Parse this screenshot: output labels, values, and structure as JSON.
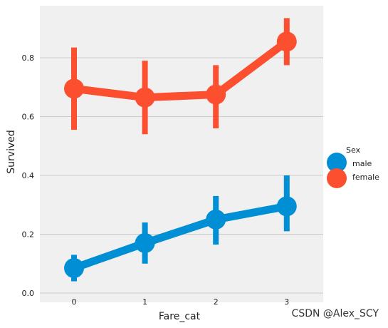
{
  "chart_data": {
    "type": "line",
    "style": "point plot with confidence-interval error bars",
    "categories": [
      "0",
      "1",
      "2",
      "3"
    ],
    "xlabel": "Fare_cat",
    "ylabel": "Survived",
    "yticks": [
      "0.0",
      "0.2",
      "0.4",
      "0.6",
      "0.8"
    ],
    "ylim": [
      0.0,
      0.93
    ],
    "grid": "horizontal",
    "background": "#f0f0f0",
    "legend": {
      "title": "Sex",
      "position": "right",
      "entries": [
        "male",
        "female"
      ]
    },
    "series": [
      {
        "name": "male",
        "color": "#008fd5",
        "values": [
          0.085,
          0.17,
          0.25,
          0.295
        ],
        "ci": [
          [
            0.04,
            0.13
          ],
          [
            0.1,
            0.24
          ],
          [
            0.165,
            0.33
          ],
          [
            0.21,
            0.4
          ]
        ]
      },
      {
        "name": "female",
        "color": "#fc4f30",
        "values": [
          0.695,
          0.665,
          0.675,
          0.855
        ],
        "ci": [
          [
            0.555,
            0.835
          ],
          [
            0.54,
            0.79
          ],
          [
            0.56,
            0.775
          ],
          [
            0.775,
            0.935
          ]
        ]
      }
    ]
  },
  "watermark": "CSDN @Alex_SCY"
}
